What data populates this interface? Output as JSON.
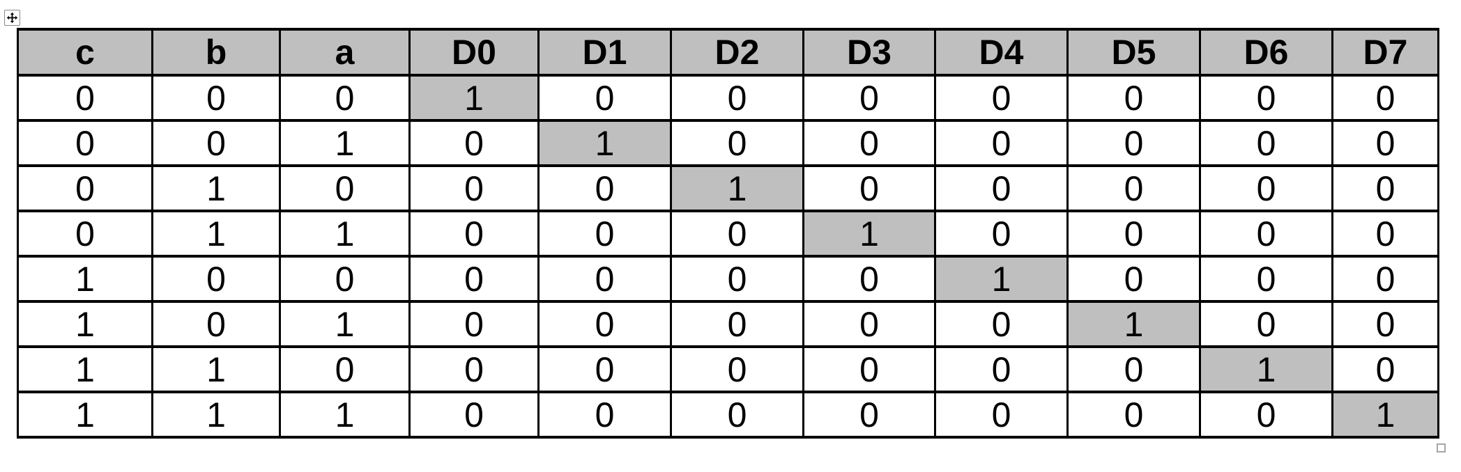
{
  "table": {
    "headers": [
      "c",
      "b",
      "a",
      "D0",
      "D1",
      "D2",
      "D3",
      "D4",
      "D5",
      "D6",
      "D7"
    ],
    "rows": [
      {
        "cells": [
          "0",
          "0",
          "0",
          "1",
          "0",
          "0",
          "0",
          "0",
          "0",
          "0",
          "0"
        ],
        "highlight_col": 3
      },
      {
        "cells": [
          "0",
          "0",
          "1",
          "0",
          "1",
          "0",
          "0",
          "0",
          "0",
          "0",
          "0"
        ],
        "highlight_col": 4
      },
      {
        "cells": [
          "0",
          "1",
          "0",
          "0",
          "0",
          "1",
          "0",
          "0",
          "0",
          "0",
          "0"
        ],
        "highlight_col": 5
      },
      {
        "cells": [
          "0",
          "1",
          "1",
          "0",
          "0",
          "0",
          "1",
          "0",
          "0",
          "0",
          "0"
        ],
        "highlight_col": 6
      },
      {
        "cells": [
          "1",
          "0",
          "0",
          "0",
          "0",
          "0",
          "0",
          "1",
          "0",
          "0",
          "0"
        ],
        "highlight_col": 7
      },
      {
        "cells": [
          "1",
          "0",
          "1",
          "0",
          "0",
          "0",
          "0",
          "0",
          "1",
          "0",
          "0"
        ],
        "highlight_col": 8
      },
      {
        "cells": [
          "1",
          "1",
          "0",
          "0",
          "0",
          "0",
          "0",
          "0",
          "0",
          "1",
          "0"
        ],
        "highlight_col": 9
      },
      {
        "cells": [
          "1",
          "1",
          "1",
          "0",
          "0",
          "0",
          "0",
          "0",
          "0",
          "0",
          "1"
        ],
        "highlight_col": 10
      }
    ]
  },
  "icons": {
    "move_handle": "move-icon",
    "resize_handle": "resize-handle-square"
  },
  "colors": {
    "header_bg": "#bfbfbf",
    "highlight_bg": "#bfbfbf",
    "border": "#000000",
    "page_bg": "#ffffff"
  }
}
